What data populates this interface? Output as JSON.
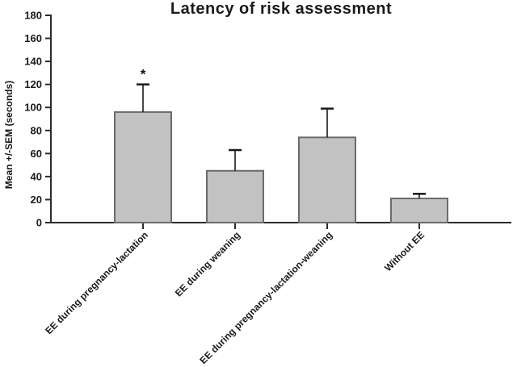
{
  "chart_data": {
    "type": "bar",
    "title": "Latency of risk assessment",
    "ylabel": "Mean +/-SEM (seconds)",
    "xlabel": "",
    "categories": [
      "EE during pregnancy-lactation",
      "EE during weaning",
      "EE during pregnancy-lactation-weaning",
      "Without EE"
    ],
    "values": [
      96,
      45,
      74,
      21
    ],
    "sem_upper": [
      24,
      18,
      25,
      4
    ],
    "significance": [
      "*",
      "",
      "",
      ""
    ],
    "ylim": [
      0,
      180
    ],
    "yticks": [
      0,
      20,
      40,
      60,
      80,
      100,
      120,
      140,
      160,
      180
    ],
    "grid": false,
    "legend": "none",
    "error_bar_direction": "up",
    "colors": {
      "bar_fill": "#c2c2c2",
      "bar_stroke": "#6b6b6b",
      "axis": "#2b2b2b",
      "error_bar": "#1a1a1a",
      "text": "#1a1a1a",
      "background": "#ffffff"
    }
  }
}
